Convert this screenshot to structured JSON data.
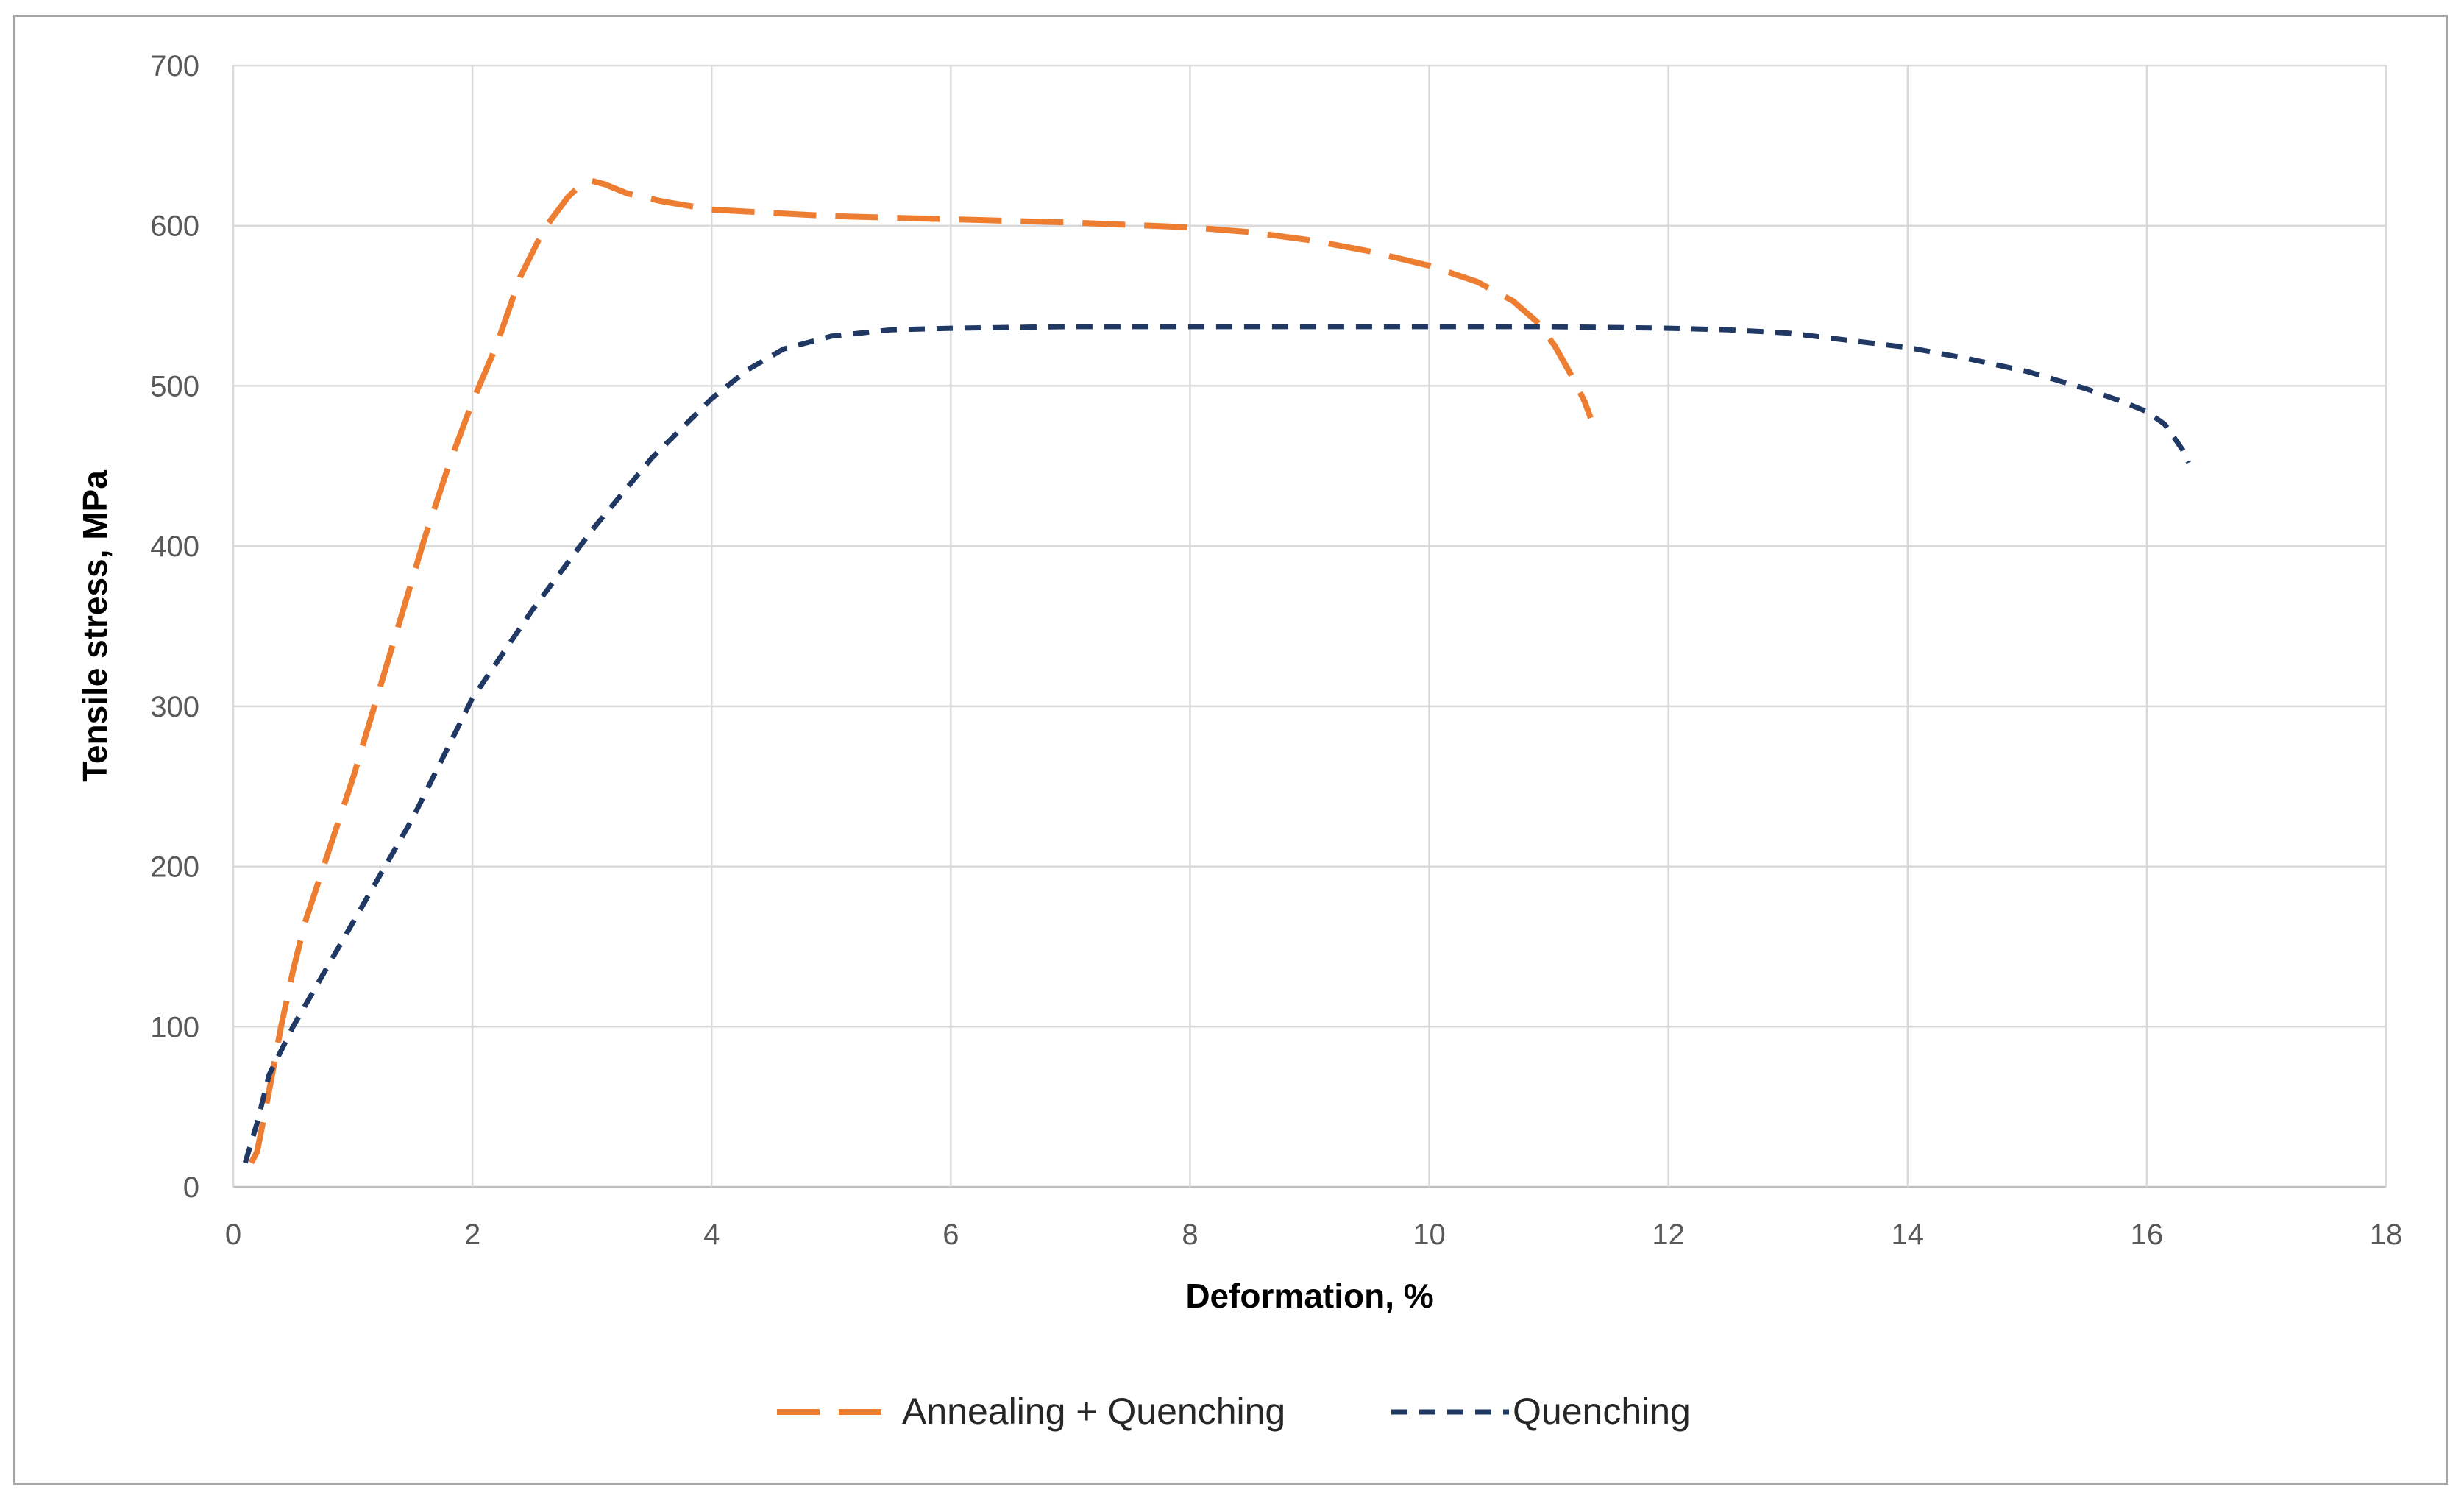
{
  "chart_data": {
    "type": "line",
    "title": "",
    "xlabel": "Deformation, %",
    "ylabel": "Tensile stress, MPa",
    "xlim": [
      0,
      18
    ],
    "ylim": [
      0,
      700
    ],
    "xticks": [
      0,
      2,
      4,
      6,
      8,
      10,
      12,
      14,
      16,
      18
    ],
    "yticks": [
      0,
      100,
      200,
      300,
      400,
      500,
      600,
      700
    ],
    "grid": true,
    "legend_position": "bottom",
    "series": [
      {
        "name": "Annealing + Quenching",
        "color": "#ED7D31",
        "style": "long-dash",
        "x": [
          0.15,
          0.2,
          0.3,
          0.4,
          0.5,
          0.6,
          0.8,
          1.0,
          1.2,
          1.4,
          1.6,
          1.8,
          2.0,
          2.2,
          2.4,
          2.6,
          2.8,
          2.9,
          3.0,
          3.1,
          3.3,
          3.6,
          4.0,
          5.0,
          6.0,
          7.0,
          8.0,
          8.5,
          9.0,
          9.5,
          10.0,
          10.4,
          10.7,
          10.9,
          11.05,
          11.2,
          11.3,
          11.35
        ],
        "y": [
          15,
          22,
          60,
          100,
          135,
          165,
          210,
          255,
          305,
          355,
          405,
          450,
          490,
          525,
          568,
          598,
          618,
          625,
          628,
          626,
          620,
          615,
          610,
          606,
          604,
          602,
          599,
          596,
          591,
          584,
          575,
          565,
          553,
          540,
          525,
          505,
          490,
          480
        ]
      },
      {
        "name": "Quenching",
        "color": "#203864",
        "style": "dash",
        "x": [
          0.1,
          0.2,
          0.3,
          0.5,
          1.0,
          1.5,
          2.0,
          2.5,
          3.0,
          3.5,
          4.0,
          4.3,
          4.6,
          5.0,
          5.5,
          6.0,
          7.0,
          8.0,
          9.0,
          10.0,
          11.0,
          12.0,
          12.5,
          13.0,
          14.0,
          14.5,
          15.0,
          15.5,
          15.8,
          16.0,
          16.15,
          16.3,
          16.35
        ],
        "y": [
          15,
          40,
          70,
          100,
          165,
          230,
          305,
          360,
          410,
          455,
          492,
          510,
          523,
          531,
          535,
          536,
          537,
          537,
          537,
          537,
          537,
          536,
          535,
          533,
          524,
          517,
          509,
          498,
          490,
          484,
          476,
          460,
          452
        ]
      }
    ]
  }
}
